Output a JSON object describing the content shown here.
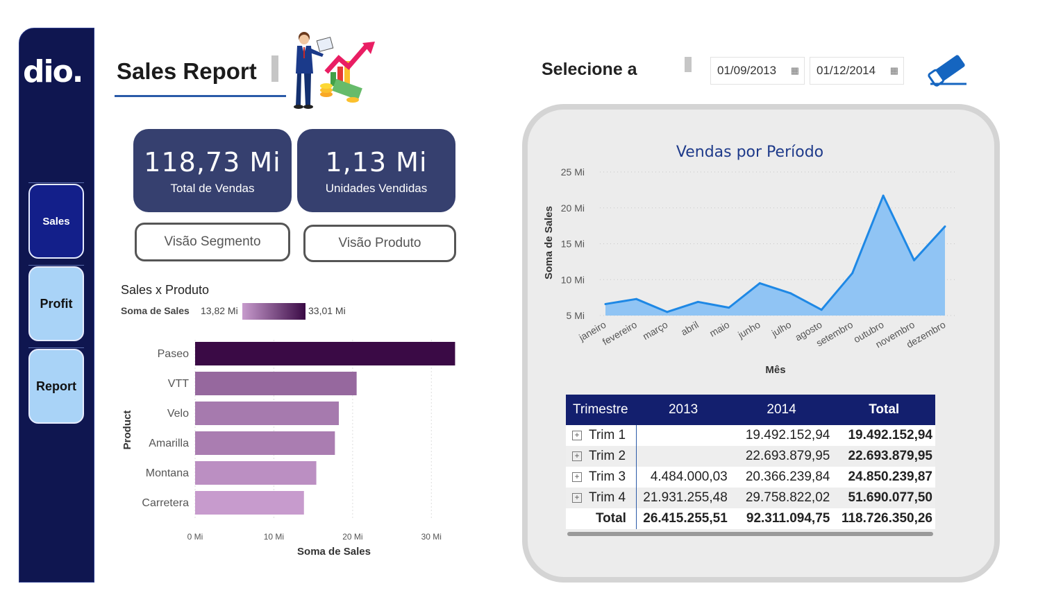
{
  "app": {
    "logo": "dio.",
    "nav": [
      {
        "label": "Sales",
        "active": true
      },
      {
        "label": "Profit",
        "active": false
      },
      {
        "label": "Report",
        "active": false
      }
    ]
  },
  "header": {
    "title": "Sales Report",
    "select_label": "Selecione a",
    "date_start": "01/09/2013",
    "date_end": "01/12/2014"
  },
  "kpis": [
    {
      "value": "118,73 Mi",
      "label": "Total de Vendas"
    },
    {
      "value": "1,13 Mi",
      "label": "Unidades Vendidas"
    }
  ],
  "views": {
    "segmento": "Visão Segmento",
    "produto": "Visão Produto"
  },
  "colors": {
    "sidebar": "#0f1650",
    "kpi": "#36406f",
    "nav_active": "#131f8a",
    "nav_inactive": "#a9d3f7",
    "line": "#1e88e5",
    "area": "#90c4f4",
    "table_header": "#131f6e",
    "bar_min": "#c79bcd",
    "bar_max": "#3a0a45"
  },
  "icons": {
    "businessman": "businessman-chart-icon",
    "eraser": "eraser-icon",
    "calendar": "calendar-icon",
    "expand": "expand-plus-icon"
  },
  "chart_data": [
    {
      "type": "bar",
      "orientation": "horizontal",
      "title": "Sales x Produto",
      "legend_label": "Soma de  Sales",
      "legend_min": "13,82 Mi",
      "legend_max": "33,01 Mi",
      "xlabel": "Soma de Sales",
      "ylabel": "Product",
      "xlim": [
        0,
        33.5
      ],
      "xticks": [
        "0 Mi",
        "10 Mi",
        "20 Mi",
        "30 Mi"
      ],
      "categories": [
        "Paseo",
        "VTT",
        "Velo",
        "Amarilla",
        "Montana",
        "Carretera"
      ],
      "values": [
        33.01,
        20.51,
        18.25,
        17.75,
        15.39,
        13.82
      ]
    },
    {
      "type": "area",
      "title": "Vendas por Período",
      "xlabel": "Mês",
      "ylabel": "Soma de Sales",
      "ylim": [
        5,
        25
      ],
      "yticks": [
        "5 Mi",
        "10 Mi",
        "15 Mi",
        "20 Mi",
        "25 Mi"
      ],
      "grid": true,
      "categories": [
        "janeiro",
        "fevereiro",
        "março",
        "abril",
        "maio",
        "junho",
        "julho",
        "agosto",
        "setembro",
        "outubro",
        "novembro",
        "dezembro"
      ],
      "values": [
        6.6,
        7.3,
        5.5,
        6.9,
        6.1,
        9.5,
        8.1,
        5.8,
        10.9,
        21.7,
        12.7,
        17.4
      ]
    }
  ],
  "matrix": {
    "headers": [
      "Trimestre",
      "2013",
      "2014",
      "Total"
    ],
    "rows": [
      {
        "label": "Trim 1",
        "y2013": "",
        "y2014": "19.492.152,94",
        "total": "19.492.152,94"
      },
      {
        "label": "Trim 2",
        "y2013": "",
        "y2014": "22.693.879,95",
        "total": "22.693.879,95"
      },
      {
        "label": "Trim 3",
        "y2013": "4.484.000,03",
        "y2014": "20.366.239,84",
        "total": "24.850.239,87"
      },
      {
        "label": "Trim 4",
        "y2013": "21.931.255,48",
        "y2014": "29.758.822,02",
        "total": "51.690.077,50"
      }
    ],
    "total": {
      "label": "Total",
      "y2013": "26.415.255,51",
      "y2014": "92.311.094,75",
      "total": "118.726.350,26"
    }
  }
}
